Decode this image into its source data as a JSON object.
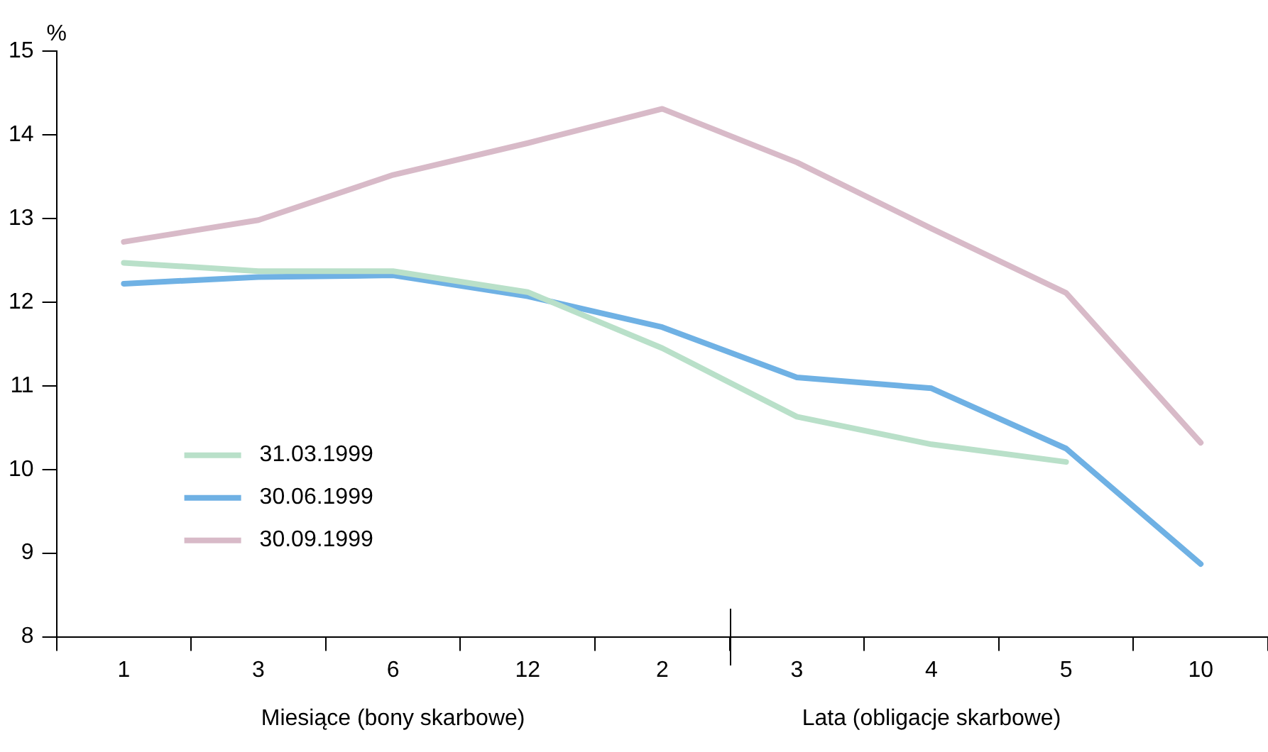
{
  "chart_data": {
    "type": "line",
    "ylabel": "%",
    "categories": [
      "1",
      "3",
      "6",
      "12",
      "2",
      "3",
      "4",
      "5",
      "10"
    ],
    "annotations": [
      "Miesiące (bony skarbowe)",
      "Lata (obligacje skarbowe)"
    ],
    "series": [
      {
        "name": "31.03.1999",
        "color": "#b9e0c9",
        "values": [
          12.47,
          12.37,
          12.37,
          12.12,
          11.45,
          10.63,
          10.3,
          10.09,
          null
        ]
      },
      {
        "name": "30.06.1999",
        "color": "#6fb1e4",
        "values": [
          12.22,
          12.3,
          12.32,
          12.07,
          11.7,
          11.1,
          10.97,
          10.25,
          8.87
        ]
      },
      {
        "name": "30.09.1999",
        "color": "#d8bac8",
        "values": [
          12.72,
          12.98,
          13.52,
          13.9,
          14.31,
          13.67,
          12.88,
          12.11,
          10.32
        ]
      }
    ],
    "ylim": [
      8,
      15
    ],
    "yticks": [
      8,
      9,
      10,
      11,
      12,
      13,
      14,
      15
    ],
    "grid": false,
    "legend": "left",
    "marker": "none",
    "line_style": "solid"
  }
}
